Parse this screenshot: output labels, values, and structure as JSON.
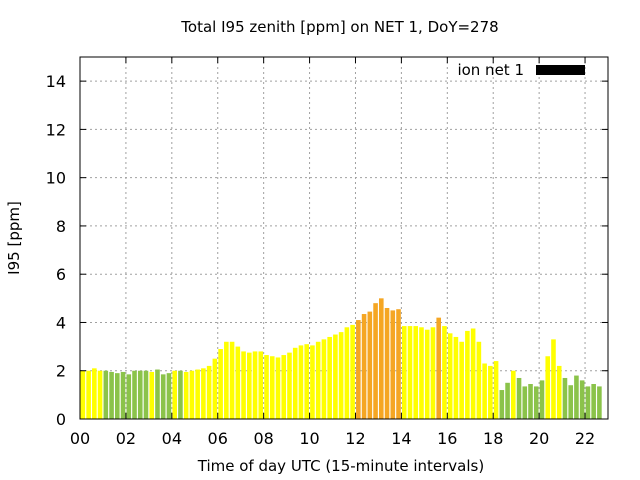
{
  "chart_data": {
    "type": "bar",
    "title": "Total I95 zenith [ppm] on NET 1, DoY=278",
    "xlabel": "Time of day UTC (15-minute intervals)",
    "ylabel": "I95 [ppm]",
    "xlim": [
      0,
      23
    ],
    "ylim": [
      0,
      15
    ],
    "x_ticks": [
      "00",
      "02",
      "04",
      "06",
      "08",
      "10",
      "12",
      "14",
      "16",
      "18",
      "20",
      "22"
    ],
    "y_ticks": [
      "0",
      "2",
      "4",
      "6",
      "8",
      "10",
      "12",
      "14"
    ],
    "grid": true,
    "legend": {
      "position": "top-right",
      "label": "ion net 1",
      "swatch_color": "#000000"
    },
    "interval_hours": 0.25,
    "series": [
      {
        "name": "ion net 1",
        "x": [
          0.0,
          0.25,
          0.5,
          0.75,
          1.0,
          1.25,
          1.5,
          1.75,
          2.0,
          2.25,
          2.5,
          2.75,
          3.0,
          3.25,
          3.5,
          3.75,
          4.0,
          4.25,
          4.5,
          4.75,
          5.0,
          5.25,
          5.5,
          5.75,
          6.0,
          6.25,
          6.5,
          6.75,
          7.0,
          7.25,
          7.5,
          7.75,
          8.0,
          8.25,
          8.5,
          8.75,
          9.0,
          9.25,
          9.5,
          9.75,
          10.0,
          10.25,
          10.5,
          10.75,
          11.0,
          11.25,
          11.5,
          11.75,
          12.0,
          12.25,
          12.5,
          12.75,
          13.0,
          13.25,
          13.5,
          13.75,
          14.0,
          14.25,
          14.5,
          14.75,
          15.0,
          15.25,
          15.5,
          15.75,
          16.0,
          16.25,
          16.5,
          16.75,
          17.0,
          17.25,
          17.5,
          17.75,
          18.0,
          18.25,
          18.5,
          18.75,
          19.0,
          19.25,
          19.5,
          19.75,
          20.0,
          20.25,
          20.5,
          20.75,
          21.0,
          21.25,
          21.5,
          21.75,
          22.0,
          22.25,
          22.5,
          22.75
        ],
        "values": [
          2.0,
          2.0,
          2.1,
          2.0,
          2.0,
          1.95,
          1.9,
          1.95,
          1.85,
          2.0,
          2.0,
          2.0,
          1.95,
          2.05,
          1.85,
          1.9,
          2.0,
          2.0,
          1.95,
          2.0,
          2.05,
          2.1,
          2.2,
          2.5,
          2.9,
          3.2,
          3.2,
          3.0,
          2.8,
          2.75,
          2.8,
          2.8,
          2.65,
          2.6,
          2.55,
          2.65,
          2.75,
          2.95,
          3.05,
          3.1,
          3.05,
          3.2,
          3.3,
          3.4,
          3.5,
          3.6,
          3.8,
          3.9,
          4.1,
          4.35,
          4.45,
          4.8,
          5.0,
          4.6,
          4.5,
          4.55,
          3.85,
          3.85,
          3.85,
          3.8,
          3.7,
          3.8,
          4.2,
          3.85,
          3.55,
          3.4,
          3.2,
          3.65,
          3.75,
          3.2,
          2.3,
          2.2,
          2.4,
          1.2,
          1.5,
          2.0,
          1.7,
          1.35,
          1.45,
          1.35,
          1.6,
          2.6,
          3.3,
          2.2,
          1.7,
          1.4,
          1.8,
          1.6,
          1.35,
          1.45,
          1.35,
          0
        ],
        "colors": [
          "#ffff00",
          "#ffff00",
          "#ffff00",
          "#ffff00",
          "#8bc34a",
          "#8bc34a",
          "#8bc34a",
          "#8bc34a",
          "#8bc34a",
          "#8bc34a",
          "#8bc34a",
          "#8bc34a",
          "#ffff00",
          "#8bc34a",
          "#8bc34a",
          "#8bc34a",
          "#ffff00",
          "#8bc34a",
          "#ffff00",
          "#ffff00",
          "#ffff00",
          "#ffff00",
          "#ffff00",
          "#ffff00",
          "#ffff00",
          "#ffff00",
          "#ffff00",
          "#ffff00",
          "#ffff00",
          "#ffff00",
          "#ffff00",
          "#ffff00",
          "#ffff00",
          "#ffff00",
          "#ffff00",
          "#ffff00",
          "#ffff00",
          "#ffff00",
          "#ffff00",
          "#ffff00",
          "#ffff00",
          "#ffff00",
          "#ffff00",
          "#ffff00",
          "#ffff00",
          "#ffff00",
          "#ffff00",
          "#ffff00",
          "#f5a623",
          "#f5a623",
          "#f5a623",
          "#f5a623",
          "#f5a623",
          "#f5a623",
          "#f5a623",
          "#f5a623",
          "#ffff00",
          "#ffff00",
          "#ffff00",
          "#ffff00",
          "#ffff00",
          "#ffff00",
          "#f5a623",
          "#ffff00",
          "#ffff00",
          "#ffff00",
          "#ffff00",
          "#ffff00",
          "#ffff00",
          "#ffff00",
          "#ffff00",
          "#ffff00",
          "#ffff00",
          "#8bc34a",
          "#8bc34a",
          "#ffff00",
          "#8bc34a",
          "#8bc34a",
          "#8bc34a",
          "#8bc34a",
          "#8bc34a",
          "#ffff00",
          "#ffff00",
          "#ffff00",
          "#8bc34a",
          "#8bc34a",
          "#8bc34a",
          "#8bc34a",
          "#8bc34a",
          "#8bc34a",
          "#8bc34a",
          "#ffff00"
        ]
      }
    ]
  }
}
